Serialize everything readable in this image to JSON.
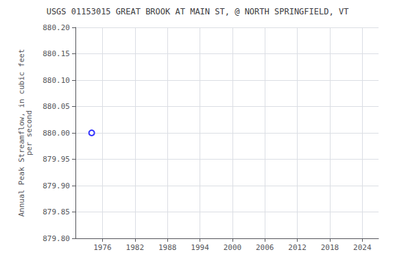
{
  "chart_data": {
    "type": "scatter",
    "title": "USGS 01153015 GREAT BROOK AT MAIN ST, @ NORTH SPRINGFIELD, VT",
    "ylabel": "Annual Peak Streamflow, in cubic feet\nper second",
    "x": [
      1974
    ],
    "values": [
      880.0
    ],
    "color": "#0000ff",
    "marker": "circle",
    "xlim": [
      1971,
      2027
    ],
    "xticks": [
      1976,
      1982,
      1988,
      1994,
      2000,
      2006,
      2012,
      2018,
      2024
    ],
    "ylim": [
      879.8,
      880.2
    ],
    "yticks": [
      {
        "value": 879.8,
        "label": "879.80"
      },
      {
        "value": 879.85,
        "label": "879.85"
      },
      {
        "value": 879.9,
        "label": "879.90"
      },
      {
        "value": 879.95,
        "label": "879.95"
      },
      {
        "value": 880.0,
        "label": "880.00"
      },
      {
        "value": 880.05,
        "label": "880.05"
      },
      {
        "value": 880.1,
        "label": "880.10"
      },
      {
        "value": 880.15,
        "label": "880.15"
      },
      {
        "value": 880.2,
        "label": "880.20"
      }
    ],
    "grid": true
  }
}
